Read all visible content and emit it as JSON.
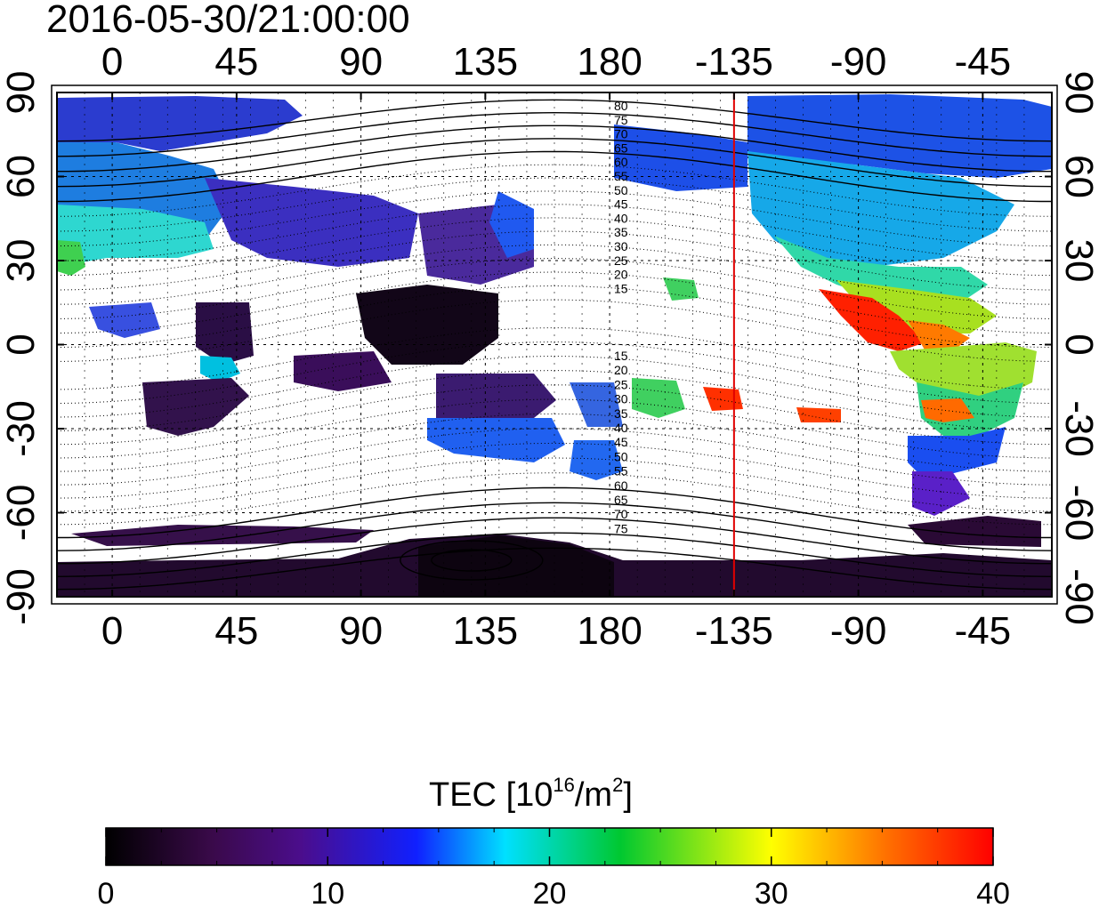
{
  "timestamp": "2016-05-30/21:00:00",
  "axes": {
    "top_labels": [
      "0",
      "45",
      "90",
      "135",
      "180",
      "-135",
      "-90",
      "-45"
    ],
    "bottom_labels": [
      "0",
      "45",
      "90",
      "135",
      "180",
      "-135",
      "-90",
      "-45"
    ],
    "left_labels": [
      "90",
      "60",
      "30",
      "0",
      "-30",
      "-60",
      "-90"
    ],
    "right_labels": [
      "90",
      "60",
      "30",
      "0",
      "-30",
      "-60",
      "-90"
    ]
  },
  "contour_labels": {
    "north": [
      "80",
      "75",
      "70",
      "65",
      "60",
      "55",
      "50",
      "45",
      "40",
      "35",
      "30",
      "25",
      "20",
      "15"
    ],
    "south": [
      "15",
      "20",
      "25",
      "30",
      "35",
      "40",
      "45",
      "50",
      "55",
      "60",
      "65",
      "70",
      "75"
    ]
  },
  "colorbar": {
    "title": "TEC",
    "unit_prefix": "[10",
    "unit_exp": "16",
    "unit_mid": "/m",
    "unit_exp2": "2",
    "unit_suffix": "]",
    "tick_labels": [
      "0",
      "10",
      "20",
      "30",
      "40"
    ],
    "range": [
      0,
      40
    ]
  },
  "map": {
    "longitude_range": [
      -20,
      340
    ],
    "latitude_range": [
      -90,
      90
    ],
    "marker_longitude": -135,
    "marker_color": "#e00000",
    "palette": [
      "#000000",
      "#3a0a4a",
      "#4b0d8c",
      "#2010ff",
      "#00e8ff",
      "#00c840",
      "#ffff00",
      "#ff8000",
      "#ff0000"
    ]
  }
}
